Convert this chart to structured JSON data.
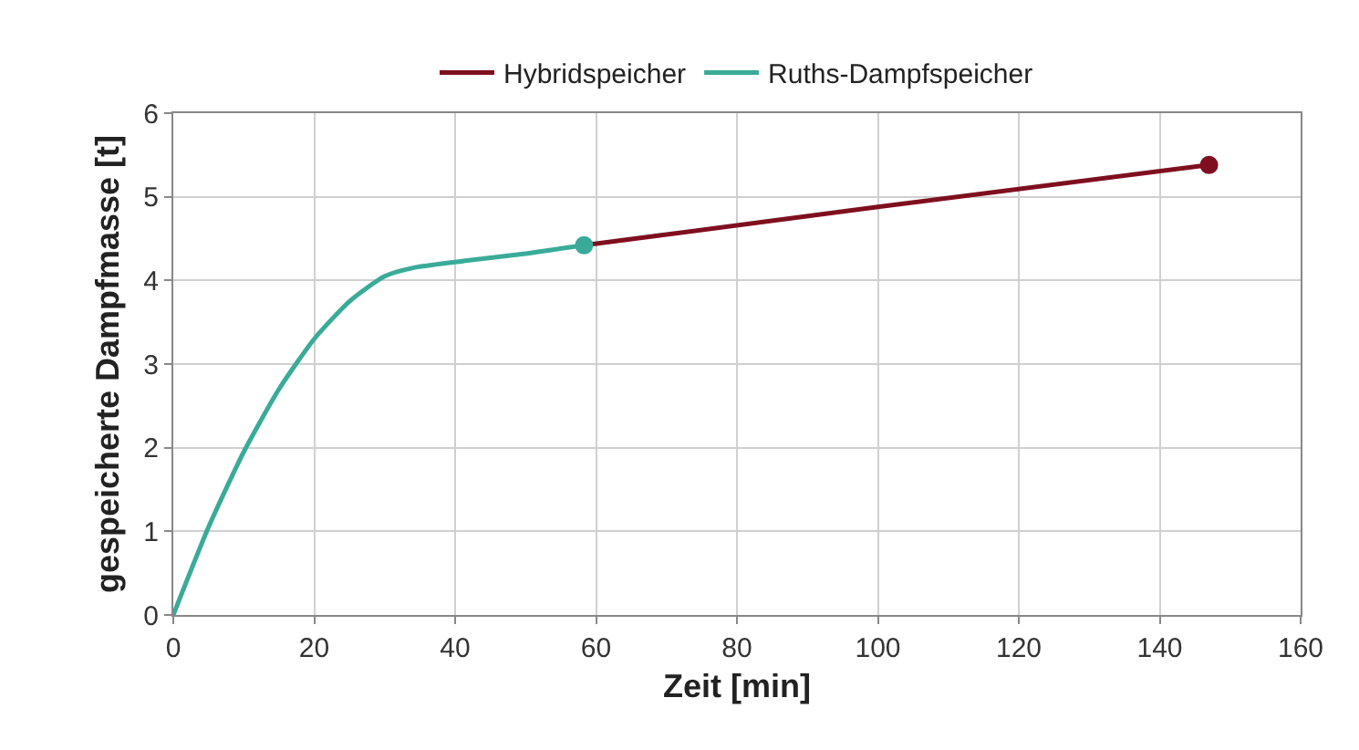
{
  "chart_data": {
    "type": "line",
    "xlabel": "Zeit [min]",
    "ylabel": "gespeicherte Dampfmasse [t]",
    "xlim": [
      0,
      160
    ],
    "xticks": [
      0,
      20,
      40,
      60,
      80,
      100,
      120,
      140,
      160
    ],
    "ylim": [
      0,
      6
    ],
    "yticks": [
      0,
      1,
      2,
      3,
      4,
      5,
      6
    ],
    "grid": true,
    "legend": "top",
    "line_style": "solid",
    "series": [
      {
        "name": "Hybridspeicher",
        "color": "#7f0f1e",
        "x": [
          58.3,
          100,
          147
        ],
        "values": [
          4.42,
          4.88,
          5.38
        ]
      },
      {
        "name": "Ruths-Dampfspeicher",
        "color": "#3aab98",
        "x": [
          0,
          5,
          10,
          15,
          20,
          25,
          30,
          34,
          40,
          50,
          58.3
        ],
        "values": [
          0,
          1.05,
          1.95,
          2.7,
          3.3,
          3.75,
          4.05,
          4.15,
          4.22,
          4.32,
          4.42
        ]
      },
      {
        "type": "scatter",
        "marker": "circle",
        "color": "#7f0f1e",
        "x": [
          147
        ],
        "values": [
          5.38
        ]
      },
      {
        "type": "scatter",
        "marker": "circle",
        "color": "#3aab98",
        "x": [
          58.3
        ],
        "values": [
          4.42
        ]
      }
    ]
  }
}
